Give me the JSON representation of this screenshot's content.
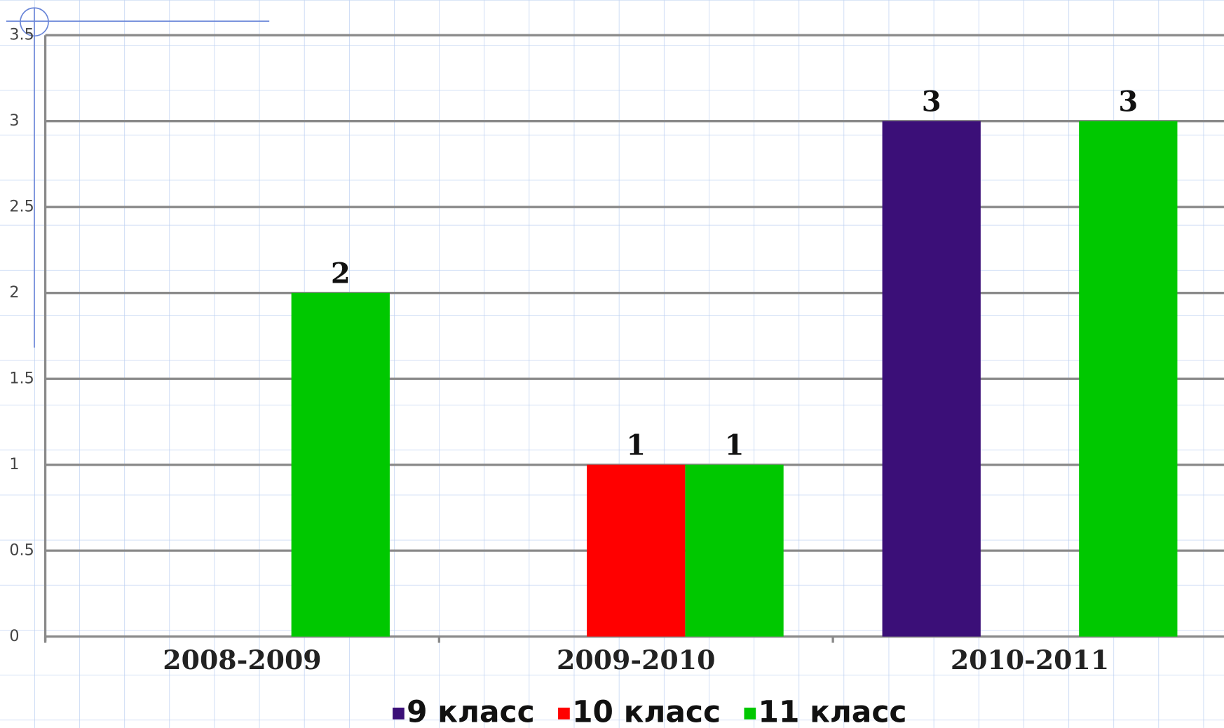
{
  "chart_data": {
    "type": "bar",
    "categories": [
      "2008-2009",
      "2009-2010",
      "2010-2011"
    ],
    "series": [
      {
        "name": "9 класс",
        "color": "#3b0f78",
        "values": [
          null,
          null,
          3
        ]
      },
      {
        "name": "10 класс",
        "color": "#ff0000",
        "values": [
          null,
          1,
          null
        ]
      },
      {
        "name": "11 класс",
        "color": "#00c800",
        "values": [
          2,
          1,
          3
        ]
      }
    ],
    "ylim": [
      0,
      3.5
    ],
    "yticks": [
      0,
      0.5,
      1,
      1.5,
      2,
      2.5,
      3,
      3.5
    ],
    "grid": true,
    "legend": "bottom"
  }
}
